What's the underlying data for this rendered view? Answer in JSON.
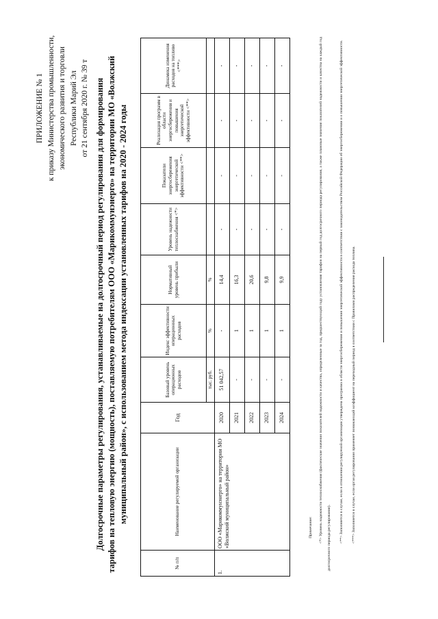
{
  "header": {
    "lines": [
      "ПРИЛОЖЕНИЕ № 1",
      "к приказу Министерства промышленности,",
      "экономического развития и торговли",
      "Республики Марий Эл",
      "от 21 сентября 2020 г. № 39 т"
    ]
  },
  "title": {
    "lines": [
      "Долгосрочные параметры регулирования, устанавливаемые на долгосрочный период регулирования для формирования",
      "тарифов на тепловую энергию (мощность), поставляемую потребителям ООО «Марикоммунэнерго» на территории МО «Волжский",
      "муниципальный район», с использованием метода индексации установленных тарифов на 2020 - 2024 годы"
    ]
  },
  "table": {
    "headers": [
      "№ п/п",
      "Наименование регулируемой организации",
      "Год",
      "Базовый уровень операционных расходов",
      "Индекс эффективности операционных расходов",
      "Нормативный уровень прибыли",
      "Уровень надежности теплоснабжения <*>",
      "Показатели энергосбережения энергетической эффективности <**>",
      "Реализация программ в области энергосбережения и повышения энергетической эффективности <**>",
      "Динамика изменения расходов на топливо <***>"
    ],
    "units": [
      "тыс. руб.",
      "%",
      "%"
    ],
    "number": "1.",
    "organization": "ООО «Марикоммунэнерго» на территории МО «Волжский муниципальный район»",
    "rows": [
      {
        "year": "2020",
        "base": "51 042,57",
        "index": "-",
        "profit": "14,4",
        "reliability": "-",
        "indicators": "-",
        "programs": "-",
        "fuel": "-"
      },
      {
        "year": "2021",
        "base": "-",
        "index": "1",
        "profit": "16,3",
        "reliability": "-",
        "indicators": "-",
        "programs": "-",
        "fuel": "-"
      },
      {
        "year": "2022",
        "base": "-",
        "index": "1",
        "profit": "20,6",
        "reliability": "-",
        "indicators": "-",
        "programs": "-",
        "fuel": "-"
      },
      {
        "year": "2023",
        "base": "-",
        "index": "1",
        "profit": "9,8",
        "reliability": "-",
        "indicators": "-",
        "programs": "-",
        "fuel": "-"
      },
      {
        "year": "2024",
        "base": "-",
        "index": "1",
        "profit": "9,9",
        "reliability": "-",
        "indicators": "-",
        "programs": "-",
        "fuel": "-"
      }
    ]
  },
  "notes": {
    "heading": "Примечание:",
    "items": [
      "<*> Уровень надежности теплоснабжения (фактические значения показателей надежности и качества, определенные за год, предшествующий году установления тарифов на первый год долгосрочного периода регулирования, а также плановые значения показателей надежности и качества на каждый год долгосрочного периода регулирования).",
      "<**> Заполняется в случае, если в отношении регулируемой организации утверждена программа в области энергосбережения и повышения энергетической эффективности в соответствии с законодательством Российской Федерации об энергосбережении и о повышении энергетической эффективности.",
      "<***> Заполняется в случае, если орган регулирования применяет понижающий коэффициент на переходный период в соответствии с Правилами распределения расхода топлива."
    ]
  }
}
